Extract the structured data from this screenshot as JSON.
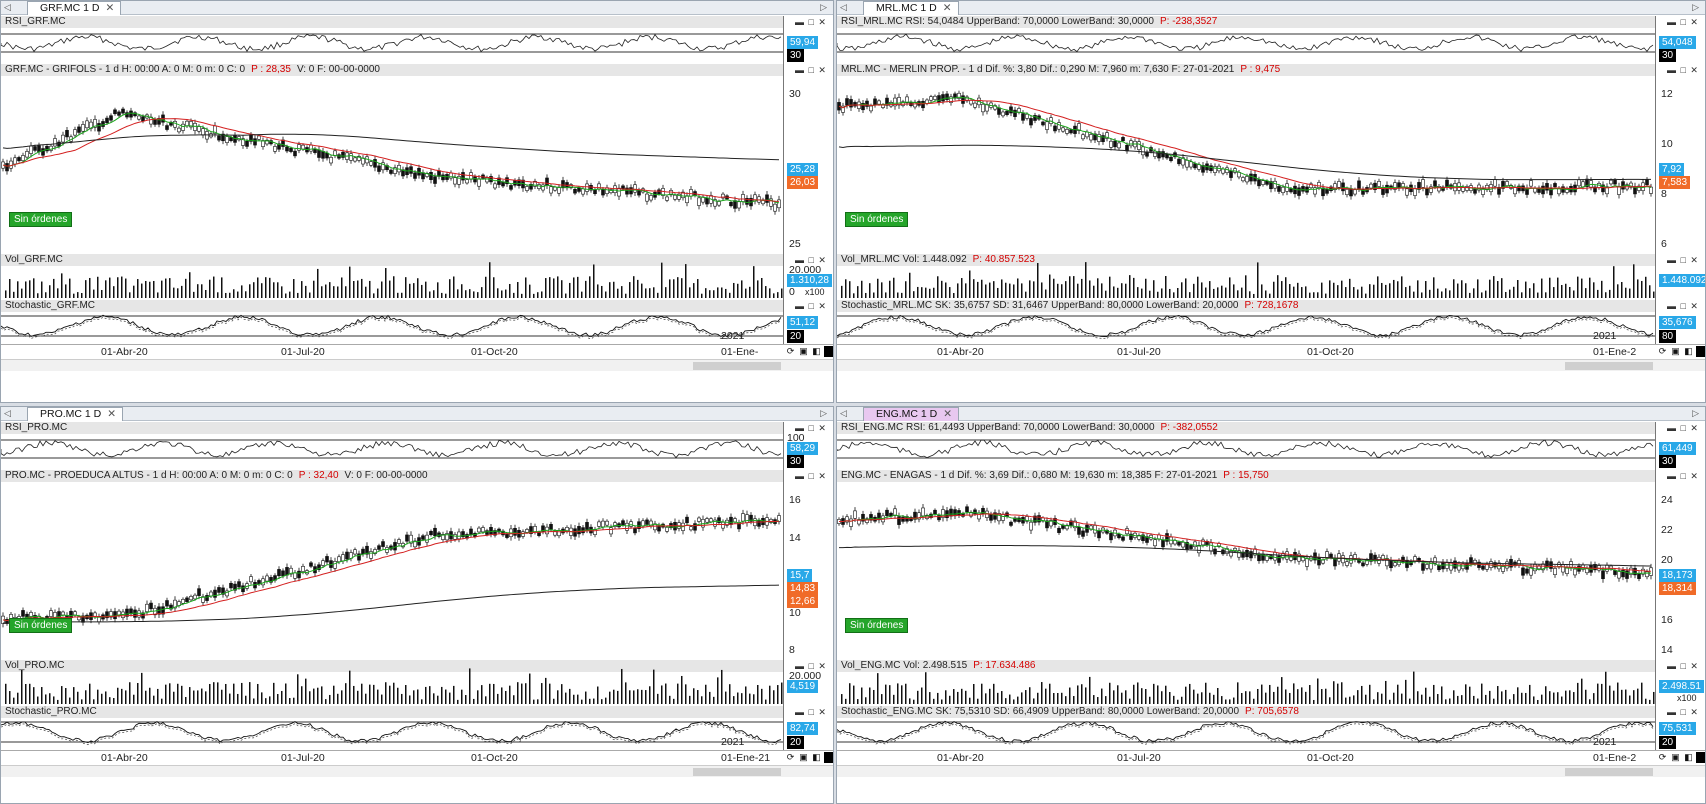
{
  "panels": [
    {
      "tab_label": "GRF.MC 1 D",
      "rsi_header": "RSI_GRF.MC",
      "rsi_value": "59,94",
      "rsi_level": "30",
      "price_header": {
        "symbol": "GRF.MC - GRIFOLS - 1 d  H: 00:00  A: 0  M: 0  m: 0  C: 0",
        "p_label": "P : 28,35",
        "extra": "V: 0  F: 00-00-0000"
      },
      "price_ticks": [
        "30",
        "25"
      ],
      "price_badges": [
        "25,28",
        "26,03"
      ],
      "orders_label": "Sin órdenes",
      "vol_header": "Vol_GRF.MC",
      "vol_ticks": [
        "20.000",
        "0"
      ],
      "vol_value": "1.310,28",
      "vol_unit": "x100",
      "stoch_header": "Stochastic_GRF.MC",
      "stoch_value": "51,12",
      "stoch_level": "20",
      "year_label": "2021",
      "dates": [
        "01-Abr-20",
        "01-Jul-20",
        "01-Oct-20",
        "01-Ene-"
      ]
    },
    {
      "tab_label": "MRL.MC 1 D",
      "rsi_header": "RSI_MRL.MC  RSI: 54,0484  UpperBand: 70,0000  LowerBand: 30,0000",
      "rsi_p": "P: -238,3527",
      "rsi_value": "54,048",
      "rsi_level": "30",
      "price_header": {
        "symbol": "MRL.MC - MERLIN PROP. - 1 d  Dif. %: 3,80  Dif.: 0,290  M: 7,960  m: 7,630  F: 27-01-2021",
        "p_label": "P : 9,475",
        "extra": ""
      },
      "price_ticks": [
        "12",
        "10",
        "8",
        "6"
      ],
      "price_badges": [
        "7,92",
        "7,583"
      ],
      "orders_label": "Sin órdenes",
      "vol_header": "Vol_MRL.MC  Vol: 1.448.092",
      "vol_p": "P: 40.857.523",
      "vol_value": "1.448.092",
      "stoch_header": "Stochastic_MRL.MC  SK: 35,6757  SD: 31,6467  UpperBand: 80,0000  LowerBand: 20,0000",
      "stoch_p": "P: 728,1678",
      "stoch_value": "35,676",
      "stoch_level": "80",
      "year_label": "2021",
      "dates": [
        "01-Abr-20",
        "01-Jul-20",
        "01-Oct-20",
        "01-Ene-2"
      ]
    },
    {
      "tab_label": "PRO.MC 1 D",
      "rsi_header": "RSI_PRO.MC",
      "rsi_value": "58,29",
      "rsi_level": "30",
      "rsi_top": "100",
      "price_header": {
        "symbol": "PRO.MC - PROEDUCA ALTUS - 1 d  H: 00:00  A: 0  M: 0  m: 0  C: 0",
        "p_label": "P : 32,40",
        "extra": "V: 0  F: 00-00-0000"
      },
      "price_ticks": [
        "16",
        "14",
        "12",
        "10",
        "8"
      ],
      "price_badges": [
        "15,7",
        "14,83",
        "12,66"
      ],
      "orders_label": "Sin órdenes",
      "vol_header": "Vol_PRO.MC",
      "vol_ticks": [
        "20.000"
      ],
      "vol_value": "4,519",
      "stoch_header": "Stochastic_PRO.MC",
      "stoch_value": "82,74",
      "stoch_level": "20",
      "year_label": "2021",
      "dates": [
        "01-Abr-20",
        "01-Jul-20",
        "01-Oct-20",
        "01-Ene-21"
      ]
    },
    {
      "tab_label": "ENG.MC 1 D",
      "rsi_header": "RSI_ENG.MC  RSI: 61,4493  UpperBand: 70,0000  LowerBand: 30,0000",
      "rsi_p": "P: -382,0552",
      "rsi_value": "61,449",
      "rsi_level": "30",
      "price_header": {
        "symbol": "ENG.MC - ENAGAS - 1 d  Dif. %: 3,69  Dif.: 0,680  M: 19,630  m: 18,385  F: 27-01-2021",
        "p_label": "P : 15,750",
        "extra": ""
      },
      "price_ticks": [
        "24",
        "22",
        "20",
        "18",
        "16",
        "14"
      ],
      "price_badges": [
        "18,173",
        "18,314"
      ],
      "orders_label": "Sin órdenes",
      "vol_header": "Vol_ENG.MC  Vol: 2.498.515",
      "vol_p": "P: 17.634.486",
      "vol_value": "2.498.51",
      "vol_unit": "x100",
      "stoch_header": "Stochastic_ENG.MC  SK: 75,5310  SD: 66,4909  UpperBand: 80,0000  LowerBand: 20,0000",
      "stoch_p": "P: 705,6578",
      "stoch_value": "75,531",
      "stoch_level": "20",
      "year_label": "2021",
      "dates": [
        "01-Abr-20",
        "01-Jul-20",
        "01-Oct-20",
        "01-Ene-2"
      ]
    }
  ]
}
